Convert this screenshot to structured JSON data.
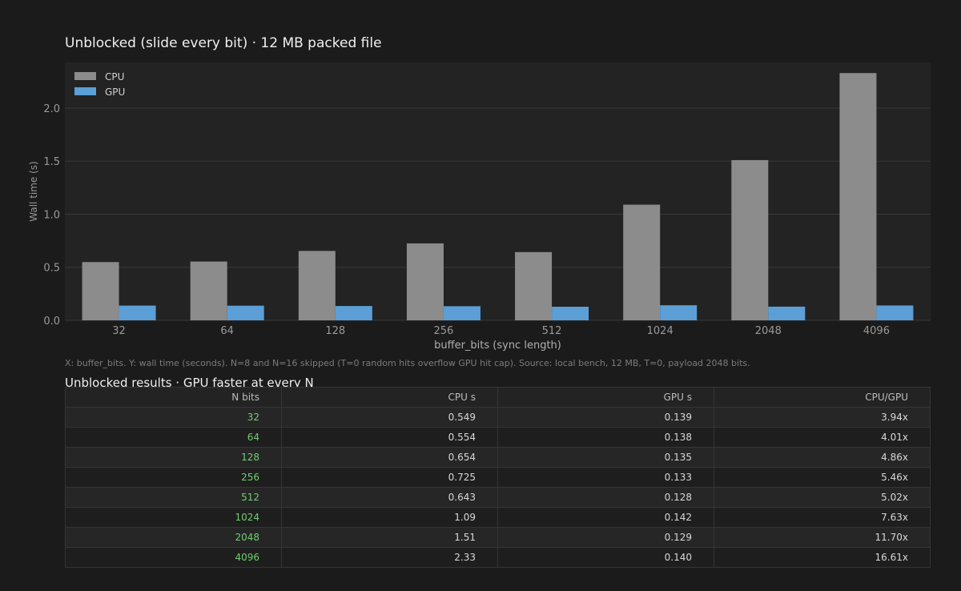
{
  "chart_title": "Unblocked (slide every bit)  ·  12 MB packed file",
  "chart_data": {
    "type": "bar",
    "title": "Unblocked (slide every bit)  ·  12 MB packed file",
    "xlabel": "buffer_bits (sync length)",
    "ylabel": "Wall time (s)",
    "categories": [
      "32",
      "64",
      "128",
      "256",
      "512",
      "1024",
      "2048",
      "4096"
    ],
    "series": [
      {
        "name": "CPU",
        "color": "#8c8c8c",
        "values": [
          0.549,
          0.554,
          0.654,
          0.725,
          0.643,
          1.09,
          1.51,
          2.33
        ]
      },
      {
        "name": "GPU",
        "color": "#5b9fd6",
        "values": [
          0.139,
          0.138,
          0.135,
          0.133,
          0.128,
          0.142,
          0.129,
          0.14
        ]
      }
    ],
    "ylim": [
      0,
      2.43
    ],
    "yticks": [
      "0.0",
      "0.5",
      "1.0",
      "1.5",
      "2.0"
    ],
    "grid": true,
    "legend_position": "top-left"
  },
  "caption": "X: buffer_bits. Y: wall time (seconds). N=8 and N=16 skipped (T=0 random hits overflow GPU hit cap). Source: local bench, 12 MB, T=0, payload 2048 bits.",
  "table": {
    "title": "Unblocked results  ·  GPU faster at every N",
    "headers": [
      "N bits",
      "CPU s",
      "GPU s",
      "CPU/GPU"
    ],
    "rows": [
      [
        "32",
        "0.549",
        "0.139",
        "3.94x"
      ],
      [
        "64",
        "0.554",
        "0.138",
        "4.01x"
      ],
      [
        "128",
        "0.654",
        "0.135",
        "4.86x"
      ],
      [
        "256",
        "0.725",
        "0.133",
        "5.46x"
      ],
      [
        "512",
        "0.643",
        "0.128",
        "5.02x"
      ],
      [
        "1024",
        "1.09",
        "0.142",
        "7.63x"
      ],
      [
        "2048",
        "1.51",
        "0.129",
        "11.70x"
      ],
      [
        "4096",
        "2.33",
        "0.140",
        "16.61x"
      ]
    ]
  }
}
